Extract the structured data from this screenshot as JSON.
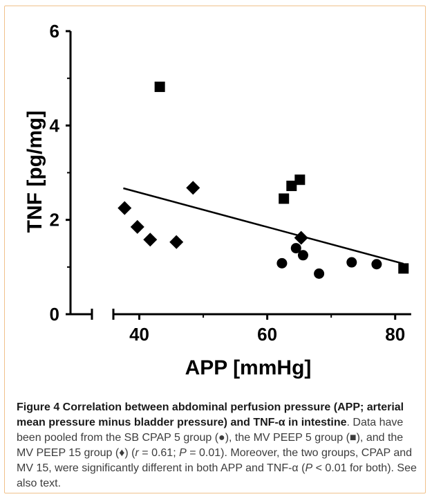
{
  "chart_data": {
    "type": "scatter",
    "xlabel": "APP [mmHg]",
    "ylabel": "TNF [pg/mg]",
    "xlim": [
      30,
      85
    ],
    "ylim": [
      0,
      6
    ],
    "x_break": true,
    "x_ticks": [
      "40",
      "60",
      "80"
    ],
    "y_ticks": [
      "0",
      "2",
      "4",
      "6"
    ],
    "x_tick_values": [
      40,
      60,
      80
    ],
    "y_tick_values": [
      0,
      2,
      4,
      6
    ],
    "grid": false,
    "series": [
      {
        "marker": "circle",
        "points": [
          [
            62.3,
            1.08
          ],
          [
            64.5,
            1.4
          ],
          [
            65.6,
            1.25
          ],
          [
            68.1,
            0.86
          ],
          [
            73.2,
            1.1
          ],
          [
            77.1,
            1.06
          ]
        ]
      },
      {
        "marker": "square",
        "points": [
          [
            43.2,
            4.82
          ],
          [
            62.6,
            2.45
          ],
          [
            63.8,
            2.72
          ],
          [
            65.1,
            2.85
          ],
          [
            81.3,
            0.97
          ]
        ]
      },
      {
        "marker": "diamond",
        "points": [
          [
            37.7,
            2.25
          ],
          [
            39.7,
            1.85
          ],
          [
            41.7,
            1.58
          ],
          [
            45.8,
            1.53
          ],
          [
            48.4,
            2.68
          ],
          [
            65.3,
            1.62
          ]
        ]
      }
    ],
    "regression_line": {
      "x": [
        37.5,
        81.3
      ],
      "y": [
        2.67,
        1.07
      ]
    }
  },
  "caption": {
    "title": "Figure 4 Correlation between abdominal perfusion pressure (APP; arterial mean pressure minus bladder pressure) and TNF-α in intestine",
    "text_1": ". Data have been pooled from the SB CPAP 5 group (●), the MV PEEP 5 group (■), and the MV PEEP 15 group (♦) (",
    "r_label": "r",
    "text_2": " = 0.61; ",
    "p_label": "P",
    "text_3": " = 0.01). Moreover, the two groups, CPAP and MV 15, were significantly different in both APP and TNF-α (",
    "p_label_2": "P",
    "text_4": " < 0.01 for both). See also text."
  }
}
